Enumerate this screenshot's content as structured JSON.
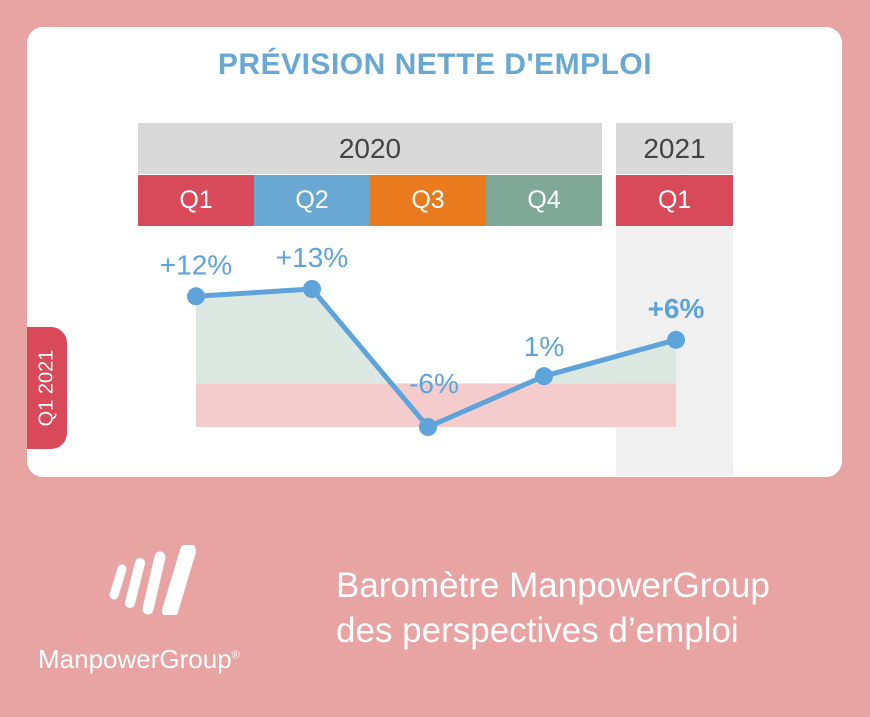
{
  "chart_data": {
    "type": "line",
    "title": "PRÉVISION NETTE D'EMPLOI",
    "years": [
      {
        "label": "2020"
      },
      {
        "label": "2021"
      }
    ],
    "categories": [
      "Q1",
      "Q2",
      "Q3",
      "Q4",
      "Q1"
    ],
    "category_colors": [
      "#d84a5a",
      "#6aa8d4",
      "#e97b1e",
      "#7fa898",
      "#d84a5a"
    ],
    "values": [
      12,
      13,
      -6,
      1,
      6
    ],
    "data_labels": [
      "+12%",
      "+13%",
      "-6%",
      "1%",
      "+6%"
    ],
    "ylim": [
      -6,
      13
    ],
    "line_color": "#5ea3d9",
    "positive_fill": "#dce9e2",
    "negative_fill": "#f4cccb",
    "grid": false
  },
  "side_label": "Q1 2021",
  "footer": {
    "line1": "Baromètre ManpowerGroup",
    "line2": "des perspectives d’emploi"
  },
  "logo": {
    "name": "ManpowerGroup",
    "mark": "®"
  },
  "colors": {
    "background": "#e8a4a2",
    "card": "#ffffff",
    "title": "#6aa8d4"
  }
}
